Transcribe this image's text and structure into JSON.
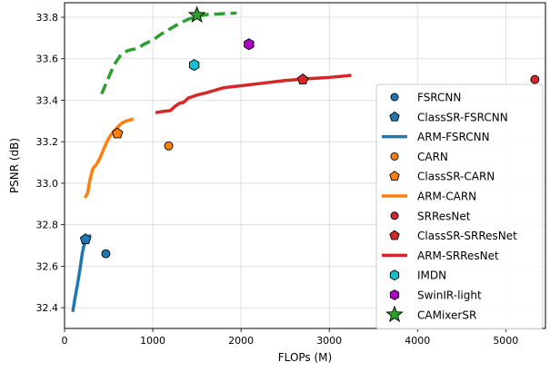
{
  "chart_data": {
    "type": "scatter",
    "title": "",
    "xlabel": "FLOPs (M)",
    "ylabel": "PSNR (dB)",
    "xlim": [
      0,
      5450
    ],
    "ylim": [
      32.3,
      33.87
    ],
    "xticks": [
      0,
      1000,
      2000,
      3000,
      4000,
      5000
    ],
    "yticks": [
      32.4,
      32.6,
      32.8,
      33.0,
      33.2,
      33.4,
      33.6,
      33.8
    ],
    "xtick_labels": [
      "0",
      "1000",
      "2000",
      "3000",
      "4000",
      "5000"
    ],
    "ytick_labels": [
      "32.4",
      "32.6",
      "32.8",
      "33.0",
      "33.2",
      "33.4",
      "33.6",
      "33.8"
    ],
    "grid": true,
    "legend_position": "right",
    "series": [
      {
        "name": "FSRCNN",
        "kind": "point",
        "marker": "circle",
        "color": "#1f77b4",
        "x": 468,
        "y": 32.66
      },
      {
        "name": "ClassSR-FSRCNN",
        "kind": "point",
        "marker": "pentagon",
        "color": "#1f77b4",
        "x": 238,
        "y": 32.73
      },
      {
        "name": "ARM-FSRCNN",
        "kind": "line",
        "dash": "solid",
        "color": "#1f77b4",
        "x": [
          93,
          120,
          150,
          180,
          200,
          220,
          240,
          260,
          280,
          300
        ],
        "y": [
          32.38,
          32.45,
          32.52,
          32.6,
          32.66,
          32.7,
          32.72,
          32.735,
          32.745,
          32.75
        ]
      },
      {
        "name": "CARN",
        "kind": "point",
        "marker": "circle",
        "color": "#ff7f0e",
        "x": 1180,
        "y": 33.18
      },
      {
        "name": "ClassSR-CARN",
        "kind": "point",
        "marker": "pentagon",
        "color": "#ff7f0e",
        "x": 600,
        "y": 33.24
      },
      {
        "name": "ARM-CARN",
        "kind": "line",
        "dash": "solid",
        "color": "#ff7f0e",
        "x": [
          230,
          260,
          290,
          320,
          360,
          400,
          440,
          480,
          520,
          560,
          600,
          650,
          700,
          780
        ],
        "y": [
          32.93,
          32.95,
          33.02,
          33.07,
          33.09,
          33.12,
          33.16,
          33.2,
          33.23,
          33.25,
          33.27,
          33.29,
          33.3,
          33.31
        ]
      },
      {
        "name": "SRResNet",
        "kind": "point",
        "marker": "circle",
        "color": "#d62728",
        "x": 5330,
        "y": 33.5
      },
      {
        "name": "ClassSR-SRResNet",
        "kind": "point",
        "marker": "pentagon",
        "color": "#d62728",
        "x": 2700,
        "y": 33.5
      },
      {
        "name": "ARM-SRResNet",
        "kind": "line",
        "dash": "solid",
        "color": "#d62728",
        "x": [
          1030,
          1100,
          1200,
          1250,
          1300,
          1350,
          1400,
          1500,
          1600,
          1800,
          2000,
          2200,
          2500,
          2800,
          3000,
          3250
        ],
        "y": [
          33.34,
          33.345,
          33.35,
          33.37,
          33.385,
          33.39,
          33.41,
          33.425,
          33.435,
          33.46,
          33.47,
          33.48,
          33.495,
          33.505,
          33.51,
          33.52
        ]
      },
      {
        "name": "IMDN",
        "kind": "point",
        "marker": "hexagon",
        "color": "#17becf",
        "x": 1470,
        "y": 33.57
      },
      {
        "name": "SwinIR-light",
        "kind": "point",
        "marker": "hexagon",
        "color": "#b000c8",
        "x": 2090,
        "y": 33.67
      },
      {
        "name": "CAMixerSR",
        "kind": "point",
        "marker": "star",
        "color": "#2ca02c",
        "x": 1500,
        "y": 33.81
      },
      {
        "name": "",
        "kind": "line",
        "dash": "dashed",
        "color": "#2ca02c",
        "x": [
          420,
          500,
          560,
          640,
          720,
          830,
          900,
          1000,
          1100,
          1200,
          1300,
          1400,
          1500,
          1600,
          1700,
          1950
        ],
        "y": [
          33.43,
          33.51,
          33.57,
          33.62,
          33.64,
          33.65,
          33.67,
          33.69,
          33.72,
          33.745,
          33.77,
          33.79,
          33.805,
          33.812,
          33.815,
          33.82
        ]
      }
    ]
  }
}
